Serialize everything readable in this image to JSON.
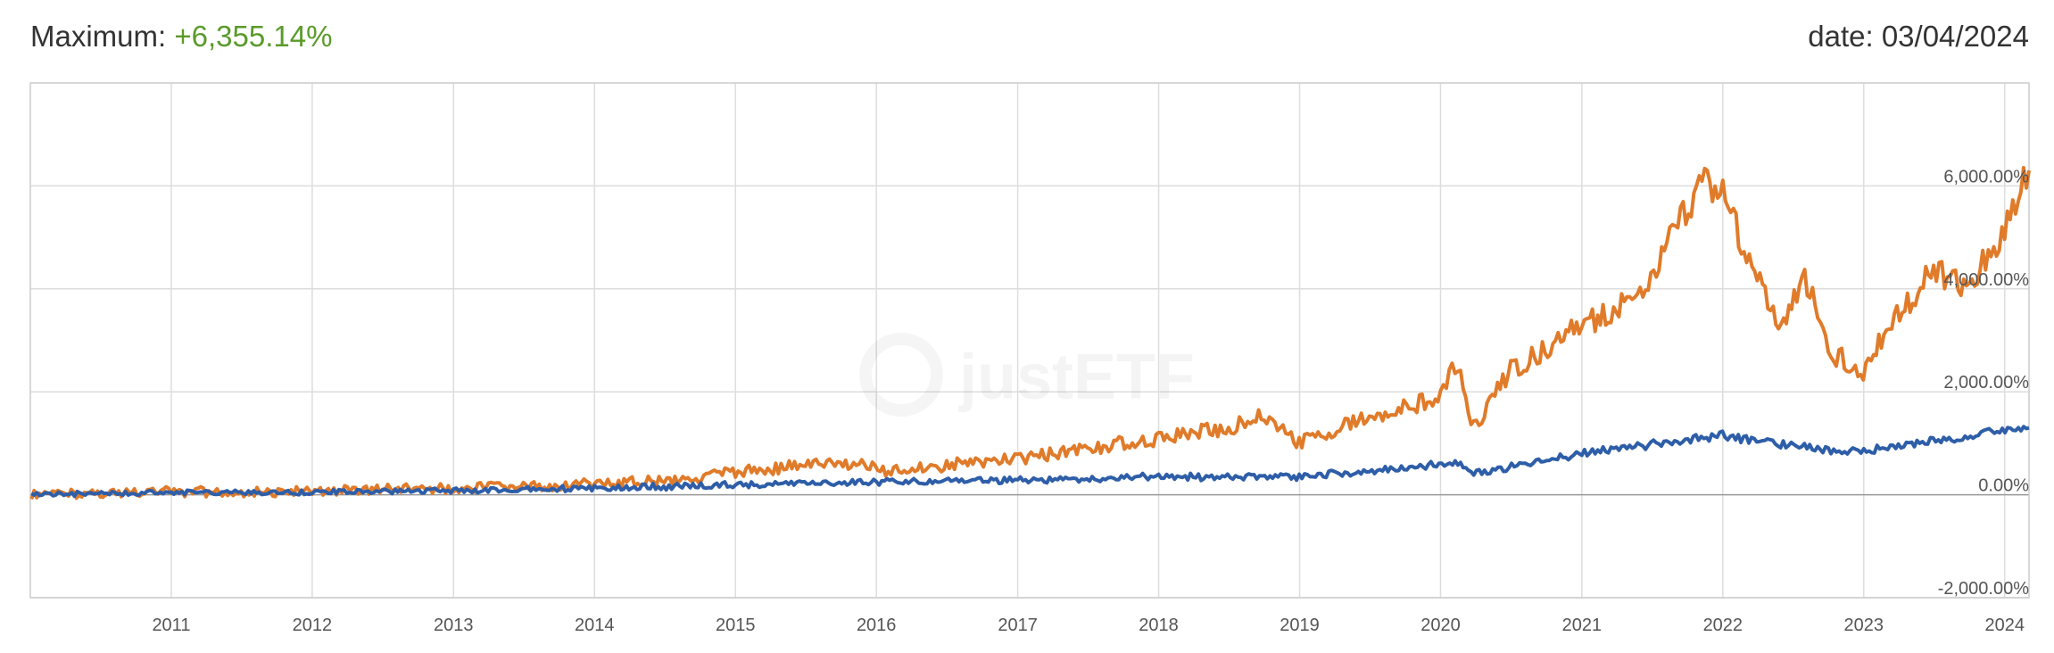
{
  "header": {
    "maximum_label": "Maximum: ",
    "maximum_value": "+6,355.14%",
    "date_label": "date: ",
    "date_value": "03/04/2024"
  },
  "watermark": "justETF",
  "colors": {
    "series_a": "#e07b2a",
    "series_b": "#2e5ea8",
    "positive": "#5a9a2a",
    "grid": "#dddddd"
  },
  "chart_data": {
    "type": "line",
    "x_ticks": [
      "2011",
      "2012",
      "2013",
      "2014",
      "2015",
      "2016",
      "2017",
      "2018",
      "2019",
      "2020",
      "2021",
      "2022",
      "2023",
      "2024"
    ],
    "y_ticks": [
      {
        "value": -2000,
        "label": "-2,000.00%"
      },
      {
        "value": 0,
        "label": "0.00%"
      },
      {
        "value": 2000,
        "label": "2,000.00%"
      },
      {
        "value": 4000,
        "label": "4,000.00%"
      },
      {
        "value": 6000,
        "label": "6,000.00%"
      }
    ],
    "xlim": [
      "2010-01-01",
      "2024-03-04"
    ],
    "ylim": [
      -2000,
      8000
    ],
    "grid": true,
    "series": [
      {
        "values": [
          [
            "2010-01-04",
            0
          ],
          [
            "2010-07-01",
            30
          ],
          [
            "2011-01-01",
            60
          ],
          [
            "2011-07-01",
            40
          ],
          [
            "2012-01-01",
            60
          ],
          [
            "2012-07-01",
            100
          ],
          [
            "2013-01-01",
            120
          ],
          [
            "2013-07-01",
            150
          ],
          [
            "2014-01-01",
            220
          ],
          [
            "2014-07-01",
            280
          ],
          [
            "2015-01-01",
            420
          ],
          [
            "2015-07-01",
            580
          ],
          [
            "2015-12-01",
            580
          ],
          [
            "2016-02-01",
            450
          ],
          [
            "2016-07-01",
            580
          ],
          [
            "2017-01-01",
            700
          ],
          [
            "2017-07-01",
            900
          ],
          [
            "2018-01-01",
            1100
          ],
          [
            "2018-07-01",
            1300
          ],
          [
            "2018-10-01",
            1550
          ],
          [
            "2018-12-31",
            1000
          ],
          [
            "2019-07-01",
            1500
          ],
          [
            "2020-01-01",
            1900
          ],
          [
            "2020-02-15",
            2600
          ],
          [
            "2020-03-20",
            1250
          ],
          [
            "2020-07-01",
            2400
          ],
          [
            "2021-01-01",
            3300
          ],
          [
            "2021-06-01",
            3800
          ],
          [
            "2021-11-15",
            6200
          ],
          [
            "2022-01-01",
            5800
          ],
          [
            "2022-06-01",
            3100
          ],
          [
            "2022-08-01",
            4300
          ],
          [
            "2022-10-01",
            2800
          ],
          [
            "2022-12-31",
            2400
          ],
          [
            "2023-03-01",
            3200
          ],
          [
            "2023-07-01",
            4400
          ],
          [
            "2023-10-01",
            4000
          ],
          [
            "2024-01-01",
            5200
          ],
          [
            "2024-03-04",
            6300
          ]
        ]
      },
      {
        "values": [
          [
            "2010-01-04",
            0
          ],
          [
            "2011-01-01",
            40
          ],
          [
            "2012-01-01",
            50
          ],
          [
            "2013-01-01",
            80
          ],
          [
            "2014-01-01",
            130
          ],
          [
            "2015-01-01",
            190
          ],
          [
            "2016-01-01",
            250
          ],
          [
            "2017-01-01",
            280
          ],
          [
            "2018-01-01",
            350
          ],
          [
            "2018-12-31",
            350
          ],
          [
            "2020-02-15",
            620
          ],
          [
            "2020-03-20",
            400
          ],
          [
            "2021-01-01",
            800
          ],
          [
            "2021-12-31",
            1150
          ],
          [
            "2022-10-01",
            850
          ],
          [
            "2023-01-01",
            850
          ],
          [
            "2024-03-04",
            1300
          ]
        ]
      }
    ]
  }
}
